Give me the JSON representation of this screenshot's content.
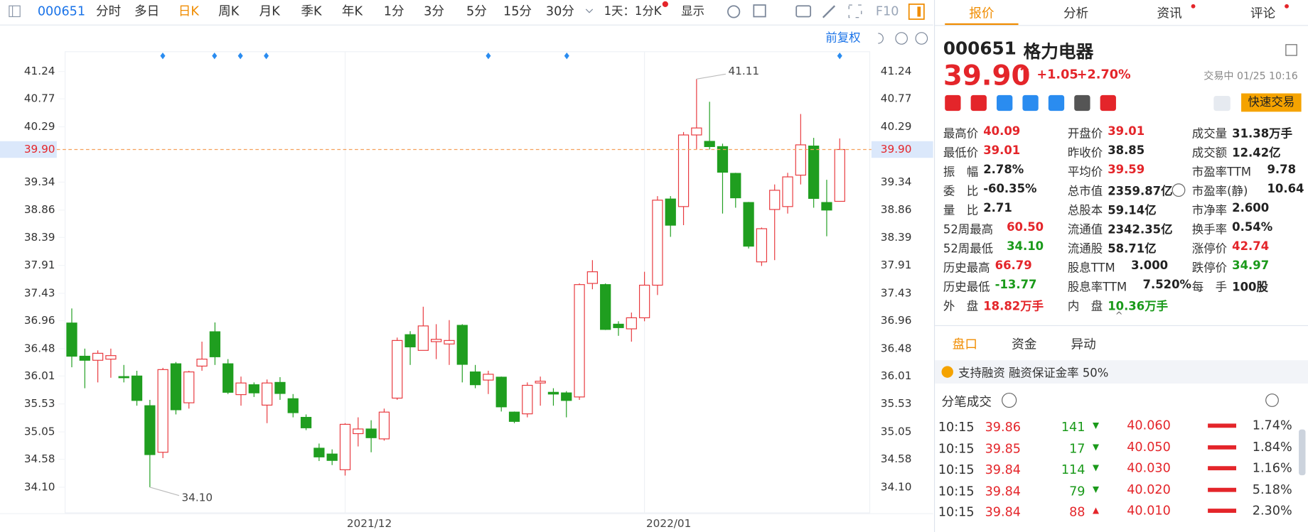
{
  "toolbar": {
    "code": "000651",
    "periods": [
      "分时",
      "多日",
      "日K",
      "周K",
      "月K",
      "季K",
      "年K",
      "1分",
      "3分",
      "5分",
      "15分",
      "30分"
    ],
    "active": 2,
    "range": "1天：1分K",
    "display": "显示",
    "f10": "F10",
    "adjust": "前复权"
  },
  "chart_data": {
    "type": "candlestick",
    "categories": [
      null,
      null,
      null,
      null,
      null,
      null,
      null,
      null,
      null,
      null,
      null,
      null,
      null,
      null,
      null,
      null,
      null,
      null,
      null,
      null,
      null,
      "2021/12",
      null,
      null,
      null,
      null,
      null,
      null,
      null,
      null,
      null,
      null,
      null,
      null,
      null,
      null,
      null,
      null,
      null,
      null,
      null,
      null,
      null,
      null,
      "2022/01",
      null,
      null,
      null,
      null,
      null,
      null,
      null,
      null,
      null,
      null,
      null,
      null,
      null,
      null,
      null
    ],
    "open": [
      36.92,
      36.35,
      36.28,
      36.3,
      36.0,
      36.01,
      35.5,
      34.7,
      36.22,
      35.55,
      36.18,
      36.77,
      36.22,
      35.69,
      35.86,
      35.51,
      35.9,
      35.62,
      35.3,
      34.77,
      34.67,
      34.4,
      35.02,
      35.1,
      34.93,
      35.63,
      36.72,
      36.45,
      36.6,
      36.56,
      36.88,
      36.08,
      35.94,
      35.99,
      35.39,
      35.36,
      35.89,
      35.73,
      35.72,
      35.65,
      37.6,
      37.58,
      36.9,
      36.82,
      37.01,
      37.57,
      39.05,
      38.92,
      40.15,
      40.04,
      39.95,
      39.49,
      38.99,
      37.97,
      38.87,
      38.92,
      39.46,
      39.96,
      38.99,
      39.01
    ],
    "high": [
      37.17,
      36.48,
      36.45,
      36.48,
      36.2,
      36.1,
      35.6,
      36.15,
      36.25,
      36.1,
      36.6,
      36.93,
      36.3,
      36.0,
      35.9,
      35.95,
      35.99,
      35.7,
      35.35,
      34.85,
      34.75,
      35.2,
      35.3,
      35.25,
      35.45,
      36.67,
      36.78,
      37.2,
      36.9,
      36.97,
      36.9,
      36.2,
      36.1,
      36.0,
      35.4,
      35.9,
      36.0,
      35.8,
      35.75,
      37.6,
      38.0,
      37.6,
      36.95,
      37.1,
      37.8,
      39.1,
      39.1,
      40.2,
      41.11,
      40.72,
      40.0,
      39.5,
      39.0,
      38.56,
      39.3,
      39.5,
      40.51,
      40.1,
      39.38,
      40.09
    ],
    "low": [
      36.16,
      35.8,
      35.9,
      35.98,
      35.9,
      35.5,
      34.1,
      34.6,
      35.35,
      35.45,
      36.1,
      36.2,
      35.7,
      35.5,
      35.65,
      35.2,
      35.6,
      35.3,
      35.08,
      34.55,
      34.48,
      34.3,
      34.8,
      34.7,
      34.9,
      35.6,
      36.2,
      36.45,
      36.3,
      36.2,
      35.9,
      35.8,
      35.7,
      35.4,
      35.2,
      35.3,
      35.5,
      35.5,
      35.3,
      35.6,
      37.5,
      36.8,
      36.7,
      36.6,
      36.95,
      37.4,
      38.4,
      38.6,
      39.9,
      39.9,
      38.8,
      38.9,
      38.2,
      37.9,
      38.0,
      38.8,
      39.3,
      38.9,
      38.41,
      39.01
    ],
    "close": [
      36.35,
      36.28,
      36.4,
      36.36,
      35.98,
      35.59,
      34.66,
      36.12,
      35.43,
      36.08,
      36.3,
      36.34,
      35.73,
      35.89,
      35.72,
      35.89,
      35.71,
      35.38,
      35.12,
      34.62,
      34.56,
      35.18,
      35.1,
      34.95,
      35.39,
      36.62,
      36.51,
      36.87,
      36.64,
      36.62,
      36.21,
      35.86,
      36.04,
      35.48,
      35.23,
      35.85,
      35.92,
      35.7,
      35.59,
      37.58,
      37.8,
      36.81,
      36.84,
      37.01,
      37.57,
      39.03,
      38.6,
      40.15,
      40.27,
      39.95,
      39.51,
      39.07,
      38.24,
      38.54,
      39.2,
      39.43,
      39.98,
      39.06,
      38.86,
      39.9
    ],
    "ylim": [
      33.66,
      41.58
    ],
    "yticks": [
      41.24,
      40.77,
      40.29,
      39.34,
      38.86,
      38.39,
      37.91,
      37.43,
      36.96,
      36.48,
      36.01,
      35.53,
      35.05,
      34.58,
      {
        "value": 34.1,
        "label": "34.10"
      }
    ],
    "up_color": "#e8383d",
    "down_color": "#1f9e1f",
    "last_price": {
      "value": 39.9,
      "label": "39.90"
    },
    "last_price_color": "#f5a05a",
    "annotations": {
      "high": {
        "value": 41.11,
        "label": "41.11"
      },
      "low": {
        "value": 34.1,
        "label": "34.10"
      }
    },
    "grid": true
  },
  "quote": {
    "tabs": [
      "报价",
      "分析",
      "资讯",
      "评论"
    ],
    "tab_dots": [
      false,
      false,
      true,
      true
    ],
    "active_tab": 0,
    "code": "000651",
    "name": "格力电器",
    "price": "39.90",
    "change": "+1.05",
    "change_pct": "+2.70%",
    "status": "交易中 01/25 10:16",
    "trade_button": "快速交易",
    "stats": [
      [
        {
          "label": "最高价",
          "value": "40.09",
          "color": "red"
        },
        {
          "label": "开盘价",
          "value": "39.01",
          "color": "red"
        },
        {
          "label": "成交量",
          "value": "31.38万手",
          "color": "black"
        }
      ],
      [
        {
          "label": "最低价",
          "value": "39.01",
          "color": "red"
        },
        {
          "label": "昨收价",
          "value": "38.85",
          "color": "black"
        },
        {
          "label": "成交额",
          "value": "12.42亿",
          "color": "black"
        }
      ],
      [
        {
          "label": "振　幅",
          "value": "2.78%",
          "color": "black"
        },
        {
          "label": "平均价",
          "value": "39.59",
          "color": "red"
        },
        {
          "label": "市盈率TTM",
          "value": "9.78",
          "color": "black"
        }
      ],
      [
        {
          "label": "委　比",
          "value": "-60.35%",
          "color": "black"
        },
        {
          "label": "总市值",
          "value": "2359.87亿",
          "color": "black"
        },
        {
          "label": "市盈率(静)",
          "value": "10.64",
          "color": "black"
        }
      ],
      [
        {
          "label": "量　比",
          "value": "2.71",
          "color": "black"
        },
        {
          "label": "总股本",
          "value": "59.14亿",
          "color": "black"
        },
        {
          "label": "市净率",
          "value": "2.600",
          "color": "black"
        }
      ],
      [
        {
          "label": "52周最高",
          "value": "60.50",
          "color": "red"
        },
        {
          "label": "流通值",
          "value": "2342.35亿",
          "color": "black"
        },
        {
          "label": "换手率",
          "value": "0.54%",
          "color": "black"
        }
      ],
      [
        {
          "label": "52周最低",
          "value": "34.10",
          "color": "green"
        },
        {
          "label": "流通股",
          "value": "58.71亿",
          "color": "black"
        },
        {
          "label": "涨停价",
          "value": "42.74",
          "color": "red"
        }
      ],
      [
        {
          "label": "历史最高",
          "value": "66.79",
          "color": "red"
        },
        {
          "label": "股息TTM",
          "value": "3.000",
          "color": "black"
        },
        {
          "label": "跌停价",
          "value": "34.97",
          "color": "green"
        }
      ],
      [
        {
          "label": "历史最低",
          "value": "-13.77",
          "color": "green"
        },
        {
          "label": "股息率TTM",
          "value": "7.520%",
          "color": "black"
        },
        {
          "label": "每　手",
          "value": "100股",
          "color": "black"
        }
      ],
      [
        {
          "label": "外　盘",
          "value": "18.82万手",
          "color": "red"
        },
        {
          "label": "内　盘",
          "value": "10.36万手",
          "color": "green"
        }
      ]
    ],
    "subtabs": [
      "盘口",
      "资金",
      "异动"
    ],
    "active_subtab": 0,
    "margin_note": "支持融资 融资保证金率 50%",
    "trades_title": "分笔成交",
    "trades": [
      {
        "time": "10:15",
        "price": 39.86,
        "volume": 141,
        "direction": "down",
        "order_price": "40.060",
        "ratio": "1.74%"
      },
      {
        "time": "10:15",
        "price": 39.85,
        "volume": 17,
        "direction": "down",
        "order_price": "40.050",
        "ratio": "1.84%"
      },
      {
        "time": "10:15",
        "price": 39.84,
        "volume": 114,
        "direction": "down",
        "order_price": "40.030",
        "ratio": "1.16%"
      },
      {
        "time": "10:15",
        "price": 39.84,
        "volume": 79,
        "direction": "down",
        "order_price": "40.020",
        "ratio": "5.18%"
      },
      {
        "time": "10:15",
        "price": 39.84,
        "volume": 88,
        "direction": "up",
        "order_price": "40.010",
        "ratio": "2.30%"
      }
    ]
  }
}
